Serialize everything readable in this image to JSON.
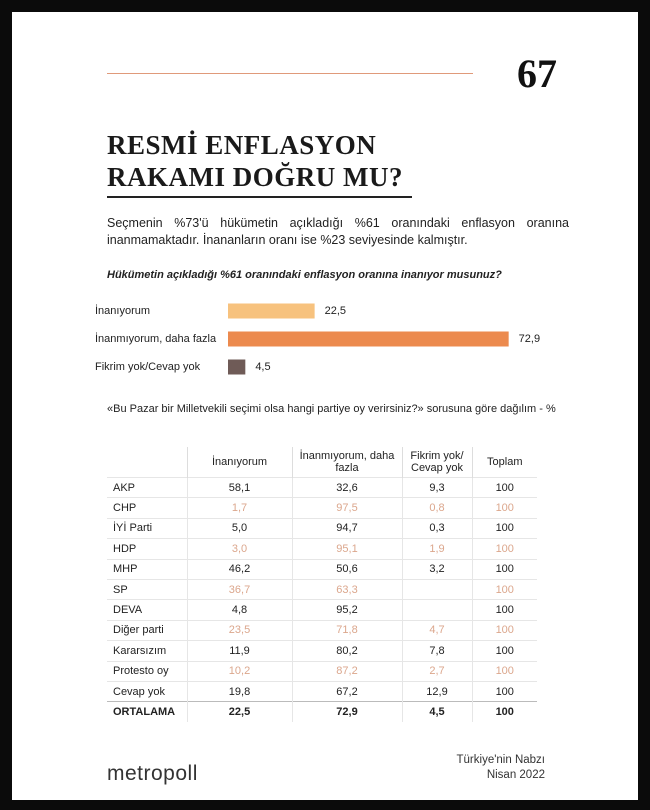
{
  "header": {
    "page_number": "67",
    "title": [
      "RESMİ ENFLASYON",
      "RAKAMI DOĞRU MU?"
    ]
  },
  "intro": "Seçmenin %73'ü hükümetin açıkladığı %61 oranındaki enflasyon oranına inanmamaktadır. İnananların oranı ise %23 seviyesinde kalmıştır.",
  "chart_data": {
    "type": "bar",
    "orientation": "horizontal",
    "title": "Hükümetin açıkladığı %61 oranındaki enflasyon oranına inanıyor musunuz?",
    "categories": [
      "İnanıyorum",
      "İnanmıyorum, daha fazla",
      "Fikrim yok/Cevap yok"
    ],
    "values": [
      22.5,
      72.9,
      4.5
    ],
    "value_labels": [
      "22,5",
      "72,9",
      "4,5"
    ],
    "colors": [
      "#f7c27e",
      "#ec8a4e",
      "#6f5b57"
    ]
  },
  "table": {
    "title": "«Bu Pazar bir Milletvekili seçimi olsa hangi partiye oy verirsiniz?» sorusuna göre dağılım - %",
    "header": [
      null,
      "İnanıyorum",
      "İnanmıyorum, daha fazla",
      "Fikrim yok/ Cevap yok",
      "Toplam"
    ],
    "rows": [
      [
        "AKP",
        "58,1",
        "32,6",
        "9,3",
        "100"
      ],
      [
        "CHP",
        "1,7",
        "97,5",
        "0,8",
        "100"
      ],
      [
        "İYİ Parti",
        "5,0",
        "94,7",
        "0,3",
        "100"
      ],
      [
        "HDP",
        "3,0",
        "95,1",
        "1,9",
        "100"
      ],
      [
        "MHP",
        "46,2",
        "50,6",
        "3,2",
        "100"
      ],
      [
        "SP",
        "36,7",
        "63,3",
        null,
        "100"
      ],
      [
        "DEVA",
        "4,8",
        "95,2",
        null,
        "100"
      ],
      [
        "Diğer parti",
        "23,5",
        "71,8",
        "4,7",
        "100"
      ],
      [
        "Kararsızım",
        "11,9",
        "80,2",
        "7,8",
        "100"
      ],
      [
        "Protesto oy",
        "10,2",
        "87,2",
        "2,7",
        "100"
      ],
      [
        "Cevap yok",
        "19,8",
        "67,2",
        "12,9",
        "100"
      ]
    ],
    "footer": [
      "ORTALAMA",
      "22,5",
      "72,9",
      "4,5",
      "100"
    ]
  },
  "footer": {
    "brand": "metropoll",
    "source": [
      "Türkiye'nin Nabzı",
      "Nisan 2022"
    ]
  }
}
